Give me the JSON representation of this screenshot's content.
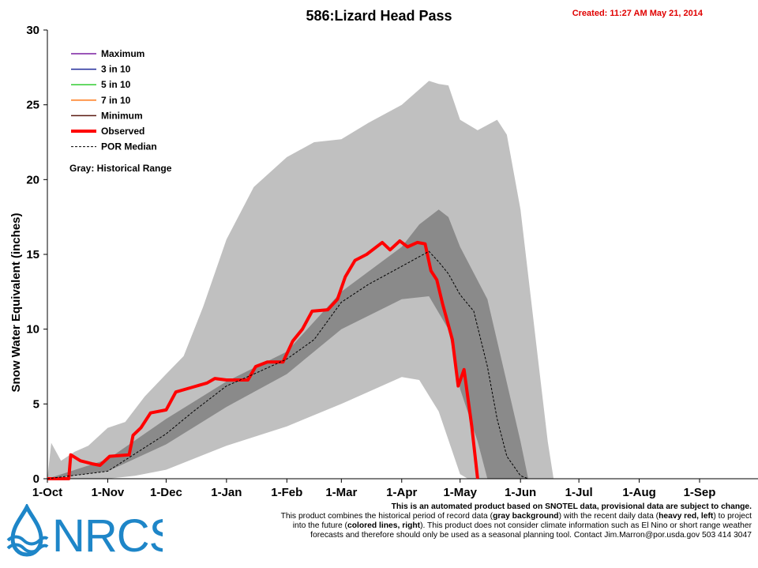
{
  "chart_data": {
    "type": "line",
    "title": "586:Lizard Head Pass",
    "created": "Created: 11:27 AM May 21, 2014",
    "ylabel": "Snow Water Equivalent (inches)",
    "xlabel": "",
    "ylim": [
      0,
      30
    ],
    "y_ticks": [
      "0",
      "5",
      "10",
      "15",
      "20",
      "25",
      "30"
    ],
    "x_ticks": [
      "1-Oct",
      "1-Nov",
      "1-Dec",
      "1-Jan",
      "1-Feb",
      "1-Mar",
      "1-Apr",
      "1-May",
      "1-Jun",
      "1-Jul",
      "1-Aug",
      "1-Sep"
    ],
    "legend": [
      {
        "name": "Maximum",
        "color": "#7a1fa0",
        "style": "solid"
      },
      {
        "name": "3 in 10",
        "color": "#1f2a9a",
        "style": "solid"
      },
      {
        "name": "5 in 10",
        "color": "#33cc33",
        "style": "solid"
      },
      {
        "name": "7 in 10",
        "color": "#ff7a1a",
        "style": "solid"
      },
      {
        "name": "Minimum",
        "color": "#5a1a10",
        "style": "solid"
      },
      {
        "name": "Observed",
        "color": "#ff0000",
        "style": "thick"
      },
      {
        "name": "POR Median",
        "color": "#000000",
        "style": "dashed"
      }
    ],
    "legend_note": "Gray: Historical Range",
    "historical_max": [
      [
        "1-Oct",
        0
      ],
      [
        "3-Oct",
        2.4
      ],
      [
        "8-Oct",
        1.2
      ],
      [
        "15-Oct",
        1.8
      ],
      [
        "22-Oct",
        2.2
      ],
      [
        "1-Nov",
        3.4
      ],
      [
        "10-Nov",
        3.8
      ],
      [
        "20-Nov",
        5.5
      ],
      [
        "1-Dec",
        7.0
      ],
      [
        "10-Dec",
        8.2
      ],
      [
        "20-Dec",
        11.5
      ],
      [
        "1-Jan",
        16.0
      ],
      [
        "15-Jan",
        19.5
      ],
      [
        "1-Feb",
        21.5
      ],
      [
        "15-Feb",
        22.5
      ],
      [
        "1-Mar",
        22.7
      ],
      [
        "15-Mar",
        23.8
      ],
      [
        "1-Apr",
        25.0
      ],
      [
        "15-Apr",
        26.6
      ],
      [
        "20-Apr",
        26.4
      ],
      [
        "25-Apr",
        26.3
      ],
      [
        "1-May",
        24.0
      ],
      [
        "10-May",
        23.3
      ],
      [
        "20-May",
        24.0
      ],
      [
        "25-May",
        23.0
      ],
      [
        "1-Jun",
        18.0
      ],
      [
        "10-Jun",
        8.0
      ],
      [
        "15-Jun",
        2.5
      ],
      [
        "18-Jun",
        0
      ]
    ],
    "historical_min": [
      [
        "1-Oct",
        0
      ],
      [
        "1-Nov",
        0
      ],
      [
        "15-Nov",
        0.2
      ],
      [
        "1-Dec",
        0.6
      ],
      [
        "1-Jan",
        2.2
      ],
      [
        "1-Feb",
        3.5
      ],
      [
        "1-Mar",
        5.0
      ],
      [
        "1-Apr",
        6.8
      ],
      [
        "10-Apr",
        6.6
      ],
      [
        "20-Apr",
        4.5
      ],
      [
        "1-May",
        0.3
      ],
      [
        "5-May",
        0
      ]
    ],
    "decile_upper": [
      [
        "1-Oct",
        0
      ],
      [
        "1-Nov",
        1.3
      ],
      [
        "1-Dec",
        4.0
      ],
      [
        "1-Jan",
        6.5
      ],
      [
        "1-Feb",
        8.5
      ],
      [
        "1-Mar",
        12.5
      ],
      [
        "1-Apr",
        15.5
      ],
      [
        "10-Apr",
        17.0
      ],
      [
        "20-Apr",
        18.0
      ],
      [
        "25-Apr",
        17.5
      ],
      [
        "1-May",
        15.5
      ],
      [
        "15-May",
        12.0
      ],
      [
        "1-Jun",
        2.5
      ],
      [
        "5-Jun",
        0
      ]
    ],
    "decile_lower": [
      [
        "1-Oct",
        0
      ],
      [
        "1-Nov",
        0.5
      ],
      [
        "1-Dec",
        2.3
      ],
      [
        "1-Jan",
        4.8
      ],
      [
        "1-Feb",
        7.0
      ],
      [
        "1-Mar",
        10.0
      ],
      [
        "1-Apr",
        12.0
      ],
      [
        "15-Apr",
        12.2
      ],
      [
        "25-Apr",
        10.0
      ],
      [
        "1-May",
        6.0
      ],
      [
        "10-May",
        2.5
      ],
      [
        "15-May",
        0
      ]
    ],
    "series": [
      {
        "name": "Observed",
        "color": "#ff0000",
        "points": [
          [
            "1-Oct",
            0
          ],
          [
            "12-Oct",
            0
          ],
          [
            "13-Oct",
            1.6
          ],
          [
            "18-Oct",
            1.2
          ],
          [
            "24-Oct",
            1.0
          ],
          [
            "28-Oct",
            0.9
          ],
          [
            "2-Nov",
            1.5
          ],
          [
            "12-Nov",
            1.6
          ],
          [
            "14-Nov",
            2.9
          ],
          [
            "18-Nov",
            3.4
          ],
          [
            "23-Nov",
            4.4
          ],
          [
            "1-Dec",
            4.6
          ],
          [
            "6-Dec",
            5.8
          ],
          [
            "14-Dec",
            6.1
          ],
          [
            "22-Dec",
            6.4
          ],
          [
            "26-Dec",
            6.7
          ],
          [
            "1-Jan",
            6.6
          ],
          [
            "12-Jan",
            6.6
          ],
          [
            "16-Jan",
            7.5
          ],
          [
            "22-Jan",
            7.8
          ],
          [
            "30-Jan",
            7.8
          ],
          [
            "4-Feb",
            9.2
          ],
          [
            "9-Feb",
            10.0
          ],
          [
            "14-Feb",
            11.2
          ],
          [
            "22-Feb",
            11.3
          ],
          [
            "27-Feb",
            12.0
          ],
          [
            "3-Mar",
            13.5
          ],
          [
            "8-Mar",
            14.6
          ],
          [
            "14-Mar",
            15.0
          ],
          [
            "22-Mar",
            15.8
          ],
          [
            "26-Mar",
            15.3
          ],
          [
            "31-Mar",
            15.9
          ],
          [
            "4-Apr",
            15.5
          ],
          [
            "9-Apr",
            15.8
          ],
          [
            "13-Apr",
            15.7
          ],
          [
            "16-Apr",
            13.9
          ],
          [
            "19-Apr",
            13.3
          ],
          [
            "22-Apr",
            11.7
          ],
          [
            "27-Apr",
            9.3
          ],
          [
            "30-Apr",
            6.2
          ],
          [
            "3-May",
            7.3
          ],
          [
            "7-May",
            3.5
          ],
          [
            "10-May",
            0
          ]
        ]
      },
      {
        "name": "POR Median",
        "color": "#000000",
        "points": [
          [
            "1-Oct",
            0
          ],
          [
            "1-Nov",
            0.5
          ],
          [
            "1-Dec",
            3.0
          ],
          [
            "15-Dec",
            4.5
          ],
          [
            "1-Jan",
            6.2
          ],
          [
            "15-Jan",
            7.0
          ],
          [
            "1-Feb",
            8.0
          ],
          [
            "15-Feb",
            9.3
          ],
          [
            "1-Mar",
            11.8
          ],
          [
            "15-Mar",
            13.0
          ],
          [
            "1-Apr",
            14.2
          ],
          [
            "15-Apr",
            15.2
          ],
          [
            "20-Apr",
            14.5
          ],
          [
            "25-Apr",
            13.7
          ],
          [
            "1-May",
            12.3
          ],
          [
            "8-May",
            11.2
          ],
          [
            "15-May",
            7.5
          ],
          [
            "20-May",
            4.0
          ],
          [
            "25-May",
            1.5
          ],
          [
            "1-Jun",
            0.2
          ],
          [
            "5-Jun",
            0
          ]
        ]
      }
    ]
  },
  "disclaimer": {
    "line1": "This is an automated product based on SNOTEL data, provisional data are subject to change.",
    "line2_pre": "This product combines the historical period of record data (",
    "line2_b1": "gray background",
    "line2_mid": ") with the recent daily data (",
    "line2_b2": "heavy red, left",
    "line2_post": ") to project",
    "line3_pre": "into the future (",
    "line3_b": "colored lines, right",
    "line3_post": "). This product does not consider climate information such as El Nino or short range weather",
    "line4": "forecasts and therefore should only be used as a seasonal planning tool. Contact Jim.Marron@por.usda.gov 503 414 3047"
  },
  "logo": {
    "text": "NRCS",
    "color": "#1e86c8"
  }
}
